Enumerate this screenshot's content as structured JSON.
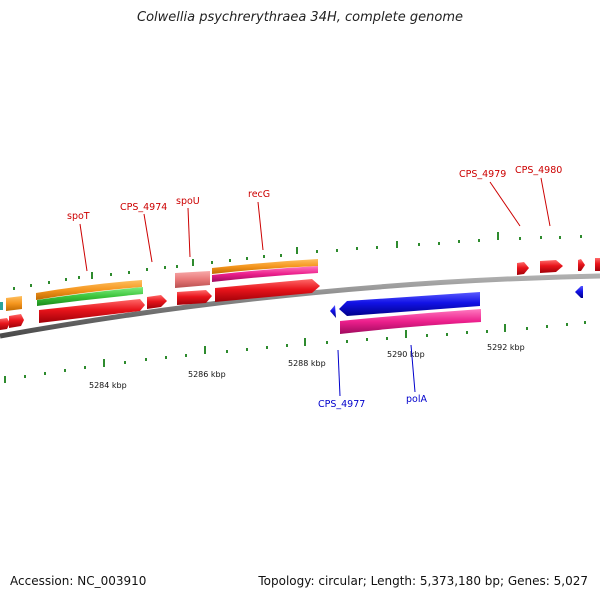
{
  "header": {
    "title": "Colwellia psychrerythraea 34H, complete genome"
  },
  "footer": {
    "accession": "Accession: NC_003910",
    "summary": "Topology: circular; Length: 5,373,180 bp; Genes: 5,027"
  },
  "colors": {
    "forward_cds": "#e8141b",
    "reverse_cds": "#1212e6",
    "orange_feature": "#f5961e",
    "green_feature": "#3cc43c",
    "magenta_feature": "#ec1f8c",
    "pink_feature": "#e87878",
    "backbone": "#7a7a7a",
    "tick": "#2e8b2e",
    "label_forward": "#cc0000",
    "label_reverse": "#0000cc"
  },
  "gene_labels_top": [
    {
      "name": "spoT"
    },
    {
      "name": "CPS_4974"
    },
    {
      "name": "spoU"
    },
    {
      "name": "recG"
    },
    {
      "name": "CPS_4979"
    },
    {
      "name": "CPS_4980"
    }
  ],
  "gene_labels_bottom": [
    {
      "name": "CPS_4977"
    },
    {
      "name": "polA"
    }
  ],
  "kbp_labels": [
    "5284 kbp",
    "5286 kbp",
    "5288 kbp",
    "5290 kbp",
    "5292 kbp"
  ]
}
